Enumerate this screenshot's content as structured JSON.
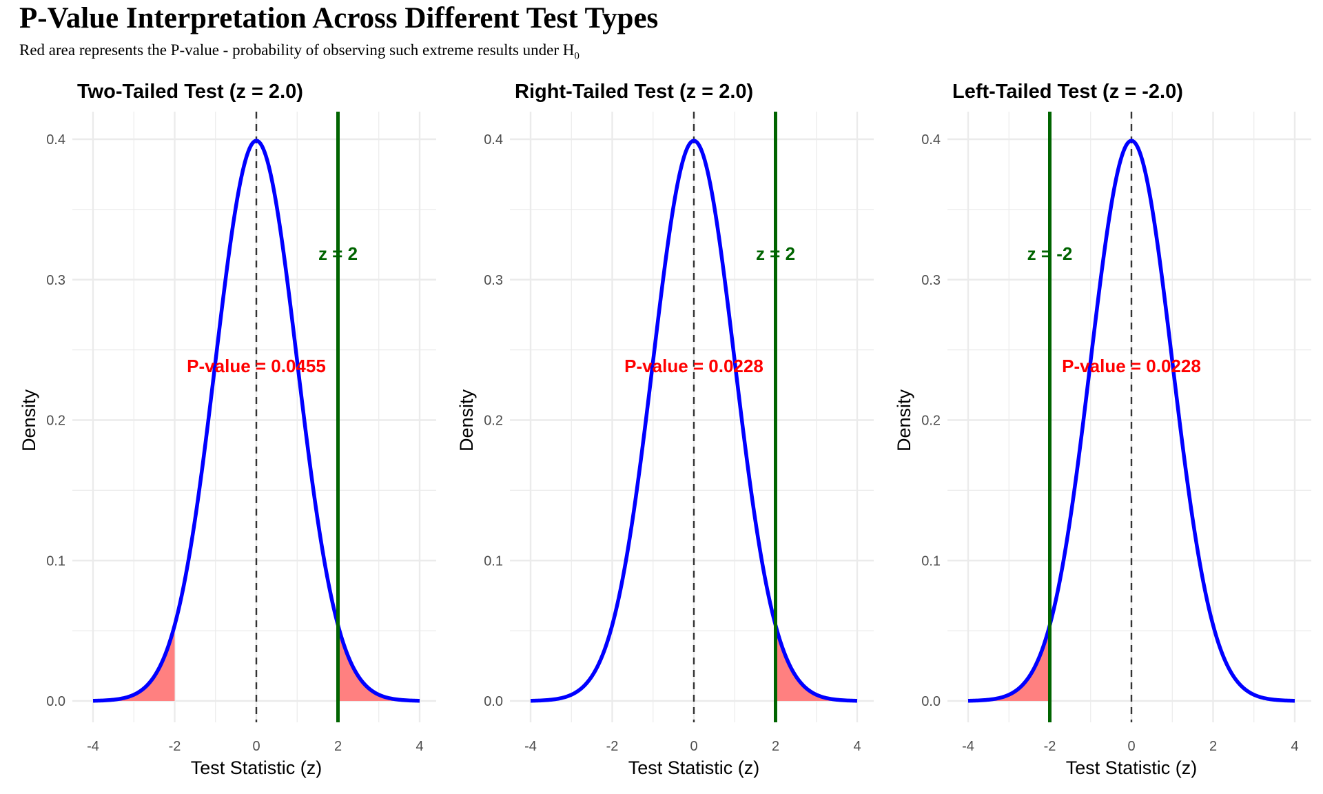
{
  "header": {
    "title": "P-Value Interpretation Across Different Test Types",
    "subtitle": "Red area represents the P-value - probability of observing such extreme results under H",
    "subtitle_subscript": "0"
  },
  "colors": {
    "curve": "#0000ff",
    "shade": "#ff8080",
    "statistic_line": "#006400",
    "p_value_text": "#ff0000",
    "grid": "#ebebeb",
    "center_line": "#333333"
  },
  "chart_data": [
    {
      "type": "area",
      "title": "Two-Tailed Test (z = 2.0)",
      "xlabel": "Test Statistic (z)",
      "ylabel": "Density",
      "xlim": [
        -4,
        4
      ],
      "ylim": [
        0,
        0.4
      ],
      "x_ticks": [
        -4,
        -2,
        0,
        2,
        4
      ],
      "x_tick_labels": [
        "-4",
        "-2",
        "0",
        "2",
        "4"
      ],
      "y_ticks": [
        0.0,
        0.1,
        0.2,
        0.3,
        0.4
      ],
      "y_tick_labels": [
        "0.0",
        "0.1",
        "0.2",
        "0.3",
        "0.4"
      ],
      "curve": "standard normal density",
      "center_line_x": 0,
      "z_stat": 2,
      "z_label": "z = 2",
      "shaded_regions": [
        [
          -4,
          -2
        ],
        [
          2,
          4
        ]
      ],
      "p_value": 0.0455,
      "p_label": "P-value = 0.0455"
    },
    {
      "type": "area",
      "title": "Right-Tailed Test (z = 2.0)",
      "xlabel": "Test Statistic (z)",
      "ylabel": "Density",
      "xlim": [
        -4,
        4
      ],
      "ylim": [
        0,
        0.4
      ],
      "x_ticks": [
        -4,
        -2,
        0,
        2,
        4
      ],
      "x_tick_labels": [
        "-4",
        "-2",
        "0",
        "2",
        "4"
      ],
      "y_ticks": [
        0.0,
        0.1,
        0.2,
        0.3,
        0.4
      ],
      "y_tick_labels": [
        "0.0",
        "0.1",
        "0.2",
        "0.3",
        "0.4"
      ],
      "curve": "standard normal density",
      "center_line_x": 0,
      "z_stat": 2,
      "z_label": "z = 2",
      "shaded_regions": [
        [
          2,
          4
        ]
      ],
      "p_value": 0.0228,
      "p_label": "P-value = 0.0228"
    },
    {
      "type": "area",
      "title": "Left-Tailed Test (z = -2.0)",
      "xlabel": "Test Statistic (z)",
      "ylabel": "Density",
      "xlim": [
        -4,
        4
      ],
      "ylim": [
        0,
        0.4
      ],
      "x_ticks": [
        -4,
        -2,
        0,
        2,
        4
      ],
      "x_tick_labels": [
        "-4",
        "-2",
        "0",
        "2",
        "4"
      ],
      "y_ticks": [
        0.0,
        0.1,
        0.2,
        0.3,
        0.4
      ],
      "y_tick_labels": [
        "0.0",
        "0.1",
        "0.2",
        "0.3",
        "0.4"
      ],
      "curve": "standard normal density",
      "center_line_x": 0,
      "z_stat": -2,
      "z_label": "z = -2",
      "shaded_regions": [
        [
          -4,
          -2
        ]
      ],
      "p_value": 0.0228,
      "p_label": "P-value = 0.0228"
    }
  ]
}
